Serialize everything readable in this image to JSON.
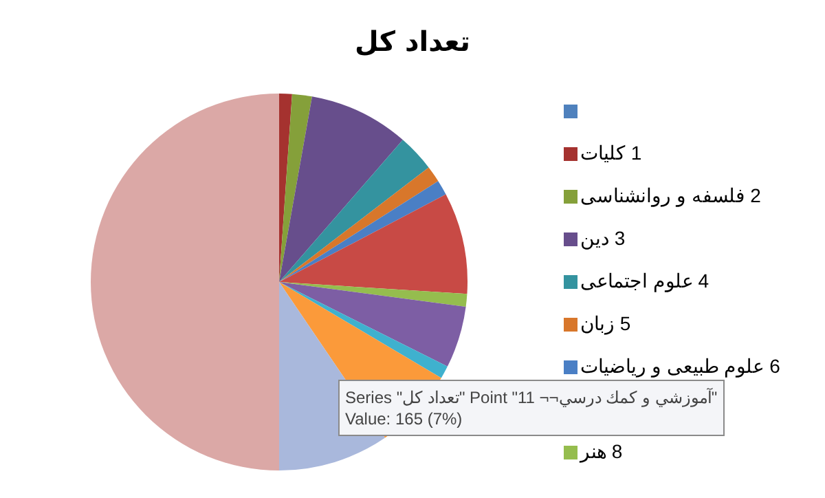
{
  "chart_data": {
    "type": "pie",
    "title": "تعداد کل",
    "categories": [
      null,
      "1 کلیات",
      "2 فلسفه و روانشناسی",
      "3 دین",
      "4 علوم اجتماعی",
      "5 زبان",
      "6 علوم طبیعی و ریاضیات",
      null,
      "8 هنر",
      null,
      null,
      null,
      null,
      null
    ],
    "values": [
      0,
      1.1,
      1.7,
      8.6,
      3.2,
      1.4,
      1.3,
      8.7,
      1.1,
      5.3,
      1.1,
      7,
      9.5,
      50
    ],
    "colors": [
      "#4f81bd",
      "#a5322f",
      "#85a03a",
      "#674e8c",
      "#34939f",
      "#d8772b",
      "#4a7fc5",
      "#c84a45",
      "#95bd4e",
      "#7d5ea4",
      "#3fb1ce",
      "#fb9a3a",
      "#a9b8dc",
      "#dba8a6"
    ],
    "legend": "right",
    "annotations": [
      "Series \"تعداد کل\" Point \"11 ¬¬آموزشي و کمك درسي\"",
      "Value: 165 (7%)"
    ]
  }
}
